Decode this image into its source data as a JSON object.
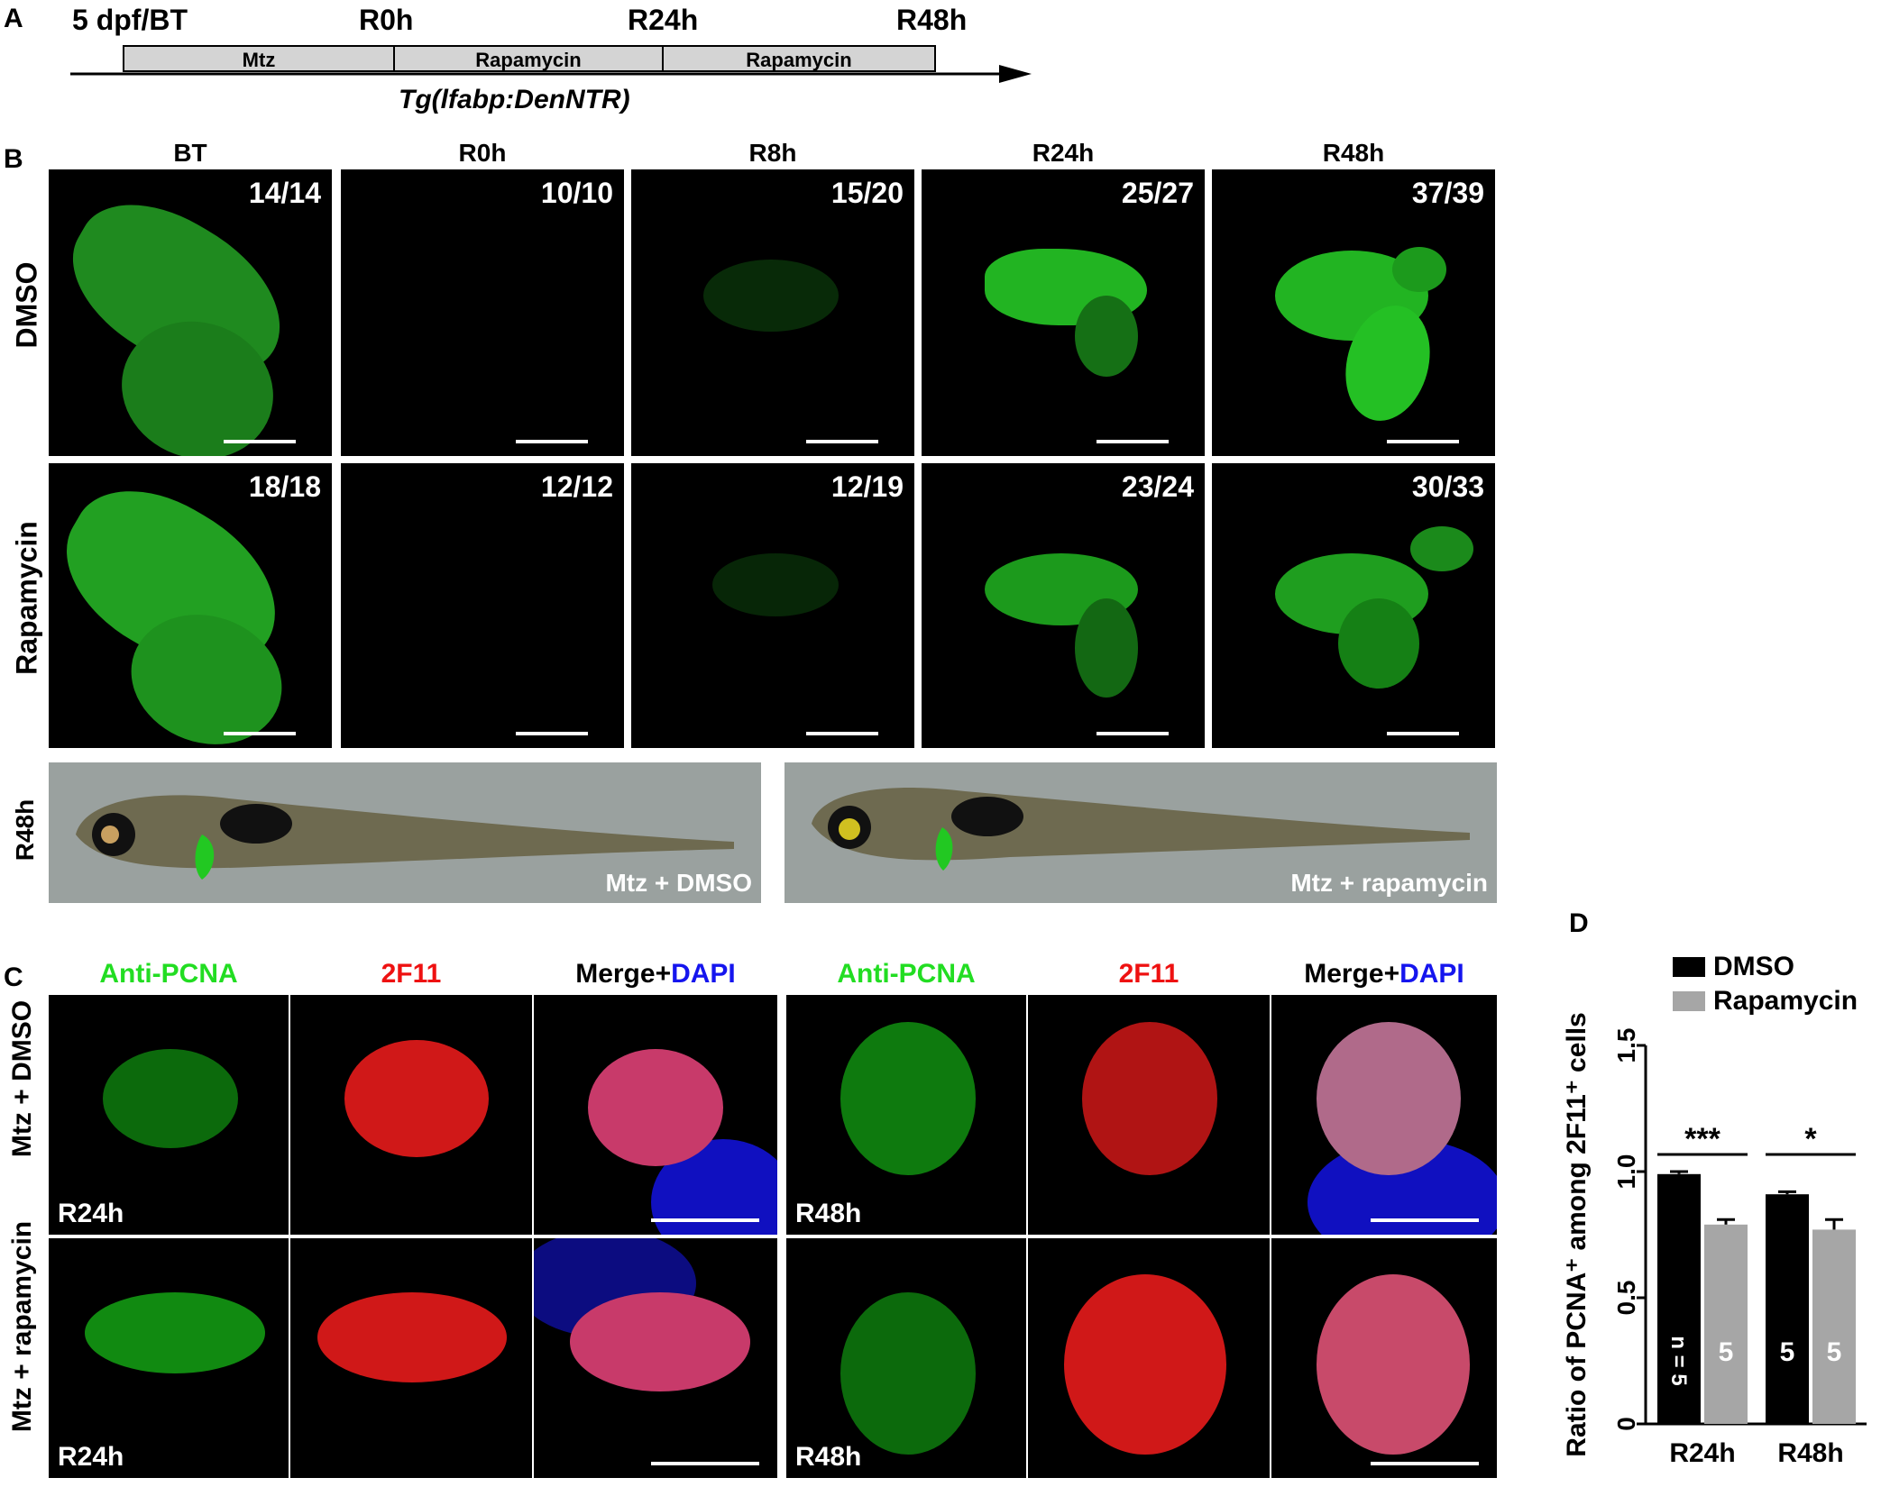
{
  "panel_a": {
    "letter": "A",
    "labels": [
      "5 dpf/BT",
      "R0h",
      "R24h",
      "R48h"
    ],
    "boxes": [
      "Mtz",
      "Rapamycin",
      "Rapamycin"
    ],
    "transgene": "Tg(lfabp:DenNTR)"
  },
  "panel_b": {
    "letter": "B",
    "columns": [
      "BT",
      "R0h",
      "R8h",
      "R24h",
      "R48h"
    ],
    "rows": [
      {
        "label": "DMSO",
        "counts": [
          "14/14",
          "10/10",
          "15/20",
          "25/27",
          "37/39"
        ]
      },
      {
        "label": "Rapamycin",
        "counts": [
          "18/18",
          "12/12",
          "12/19",
          "23/24",
          "30/33"
        ]
      }
    ],
    "fish_row_label": "R48h",
    "fish_captions": [
      "Mtz + DMSO",
      "Mtz + rapamycin"
    ]
  },
  "panel_c": {
    "letter": "C",
    "columns": [
      "Anti-PCNA",
      "2F11",
      "Merge+",
      "DAPI",
      "Anti-PCNA",
      "2F11",
      "Merge+",
      "DAPI"
    ],
    "rows": [
      "Mtz + DMSO",
      "Mtz + rapamycin"
    ],
    "timepoints": [
      "R24h",
      "R48h",
      "R24h",
      "R48h"
    ]
  },
  "panel_d": {
    "letter": "D"
  },
  "colors": {
    "green": "#22dd22",
    "red": "#ee1111",
    "blue": "#1515ee",
    "dmso_bar": "#000000",
    "rapa_bar": "#a6a6a6"
  },
  "chart_data": {
    "type": "bar",
    "ylabel": "Ratio of PCNA⁺ among 2F11⁺ cells",
    "categories": [
      "R24h",
      "R48h"
    ],
    "series": [
      {
        "name": "DMSO",
        "values": [
          0.99,
          0.91
        ],
        "errors": [
          0.01,
          0.01
        ],
        "n": [
          "n = 5",
          "5"
        ]
      },
      {
        "name": "Rapamycin",
        "values": [
          0.79,
          0.77
        ],
        "errors": [
          0.02,
          0.04
        ],
        "n": [
          "5",
          "5"
        ]
      }
    ],
    "significance": [
      "***",
      "*"
    ],
    "yticks": [
      "0",
      "0.5",
      "1.0",
      "1.5"
    ],
    "ylim": [
      0,
      1.5
    ],
    "legend_position": "top"
  }
}
